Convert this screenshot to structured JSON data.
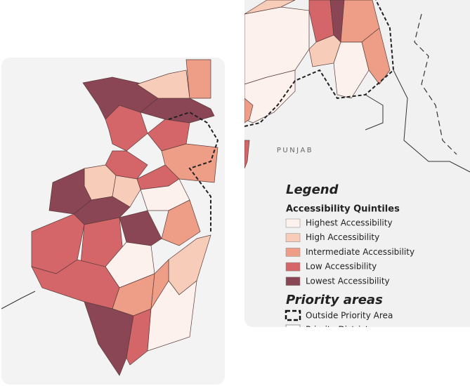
{
  "map_label": "PUNJAB",
  "legend": {
    "title": "Legend",
    "quintiles_title": "Accessibility Quintiles",
    "quintiles": [
      {
        "label": "Highest Accessibility",
        "color": "#fcf1ec"
      },
      {
        "label": "High Accessibility",
        "color": "#f7cdb9"
      },
      {
        "label": "Intermediate Accessibility",
        "color": "#ee9e86"
      },
      {
        "label": "Low Accessibility",
        "color": "#d4666a"
      },
      {
        "label": "Lowest Accessibility",
        "color": "#8a4655"
      }
    ],
    "priority_title": "Priority areas",
    "priority_items": [
      "Outside Priority Area",
      "Priority Districts"
    ]
  }
}
